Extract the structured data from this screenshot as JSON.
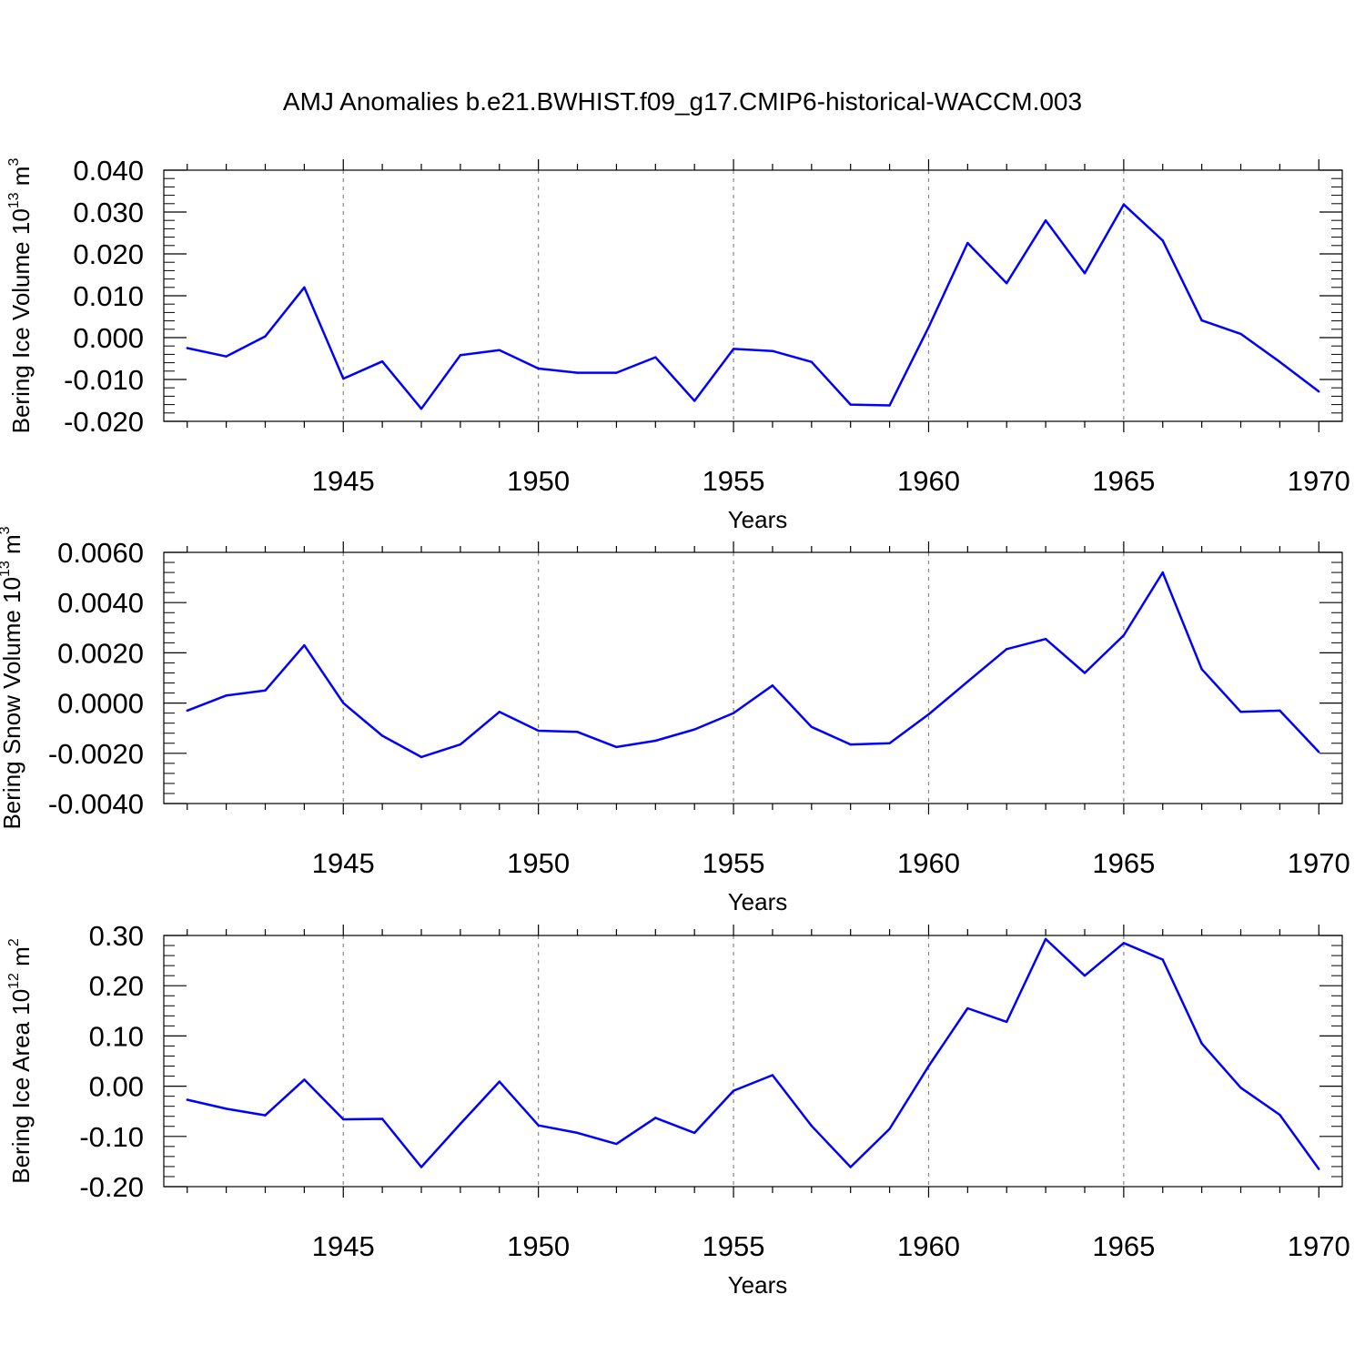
{
  "title": "AMJ Anomalies b.e21.BWHIST.f09_g17.CMIP6-historical-WACCM.003",
  "colors": {
    "line": "#0000ff",
    "axis": "#000000",
    "grid": "#888888"
  },
  "chart_data": [
    {
      "type": "line",
      "title": "AMJ Anomalies b.e21.BWHIST.f09_g17.CMIP6-historical-WACCM.003",
      "xlabel": "Years",
      "ylabel": "Bering Ice Volume 10",
      "ylabel_exp": "13",
      "ylabel_unit": " m",
      "ylabel_unit_exp": "3",
      "xlim": [
        1941,
        1970
      ],
      "ylim": [
        -0.02,
        0.04
      ],
      "yticks": [
        -0.02,
        -0.01,
        0.0,
        0.01,
        0.02,
        0.03,
        0.04
      ],
      "ytick_labels": [
        "-0.020",
        "-0.010",
        "0.000",
        "0.010",
        "0.020",
        "0.030",
        "0.040"
      ],
      "xticks": [
        1945,
        1950,
        1955,
        1960,
        1965,
        1970
      ],
      "xtick_labels": [
        "1945",
        "1950",
        "1955",
        "1960",
        "1965",
        "1970"
      ],
      "grid": "vertical dashed at major x ticks",
      "x": [
        1941,
        1942,
        1943,
        1944,
        1945,
        1946,
        1947,
        1948,
        1949,
        1950,
        1951,
        1952,
        1953,
        1954,
        1955,
        1956,
        1957,
        1958,
        1959,
        1960,
        1961,
        1962,
        1963,
        1964,
        1965,
        1966,
        1967,
        1968,
        1969,
        1970
      ],
      "series": [
        {
          "name": "Bering Ice Volume",
          "values": [
            -0.0025,
            -0.0045,
            0.0003,
            0.012,
            -0.0098,
            -0.0057,
            -0.017,
            -0.0042,
            -0.003,
            -0.0074,
            -0.0084,
            -0.0084,
            -0.0047,
            -0.0151,
            -0.0027,
            -0.0032,
            -0.0058,
            -0.016,
            -0.0162,
            0.0025,
            0.0226,
            0.013,
            0.028,
            0.0154,
            0.0318,
            0.0232,
            0.0041,
            0.0009,
            -0.0058,
            -0.0129
          ]
        }
      ]
    },
    {
      "type": "line",
      "xlabel": "Years",
      "ylabel": "Bering Snow Volume 10",
      "ylabel_exp": "13",
      "ylabel_unit": " m",
      "ylabel_unit_exp": "3",
      "xlim": [
        1941,
        1970
      ],
      "ylim": [
        -0.004,
        0.006
      ],
      "yticks": [
        -0.004,
        -0.002,
        0.0,
        0.002,
        0.004,
        0.006
      ],
      "ytick_labels": [
        "-0.0040",
        "-0.0020",
        "0.0000",
        "0.0020",
        "0.0040",
        "0.0060"
      ],
      "xticks": [
        1945,
        1950,
        1955,
        1960,
        1965,
        1970
      ],
      "xtick_labels": [
        "1945",
        "1950",
        "1955",
        "1960",
        "1965",
        "1970"
      ],
      "grid": "vertical dashed at major x ticks",
      "x": [
        1941,
        1942,
        1943,
        1944,
        1945,
        1946,
        1947,
        1948,
        1949,
        1950,
        1951,
        1952,
        1953,
        1954,
        1955,
        1956,
        1957,
        1958,
        1959,
        1960,
        1961,
        1962,
        1963,
        1964,
        1965,
        1966,
        1967,
        1968,
        1969,
        1970
      ],
      "series": [
        {
          "name": "Bering Snow Volume",
          "values": [
            -0.0003,
            0.0003,
            0.0005,
            0.0023,
            0.0,
            -0.0013,
            -0.00215,
            -0.00165,
            -0.00035,
            -0.0011,
            -0.00115,
            -0.00175,
            -0.0015,
            -0.00105,
            -0.0004,
            0.0007,
            -0.00095,
            -0.00165,
            -0.0016,
            -0.00045,
            0.00085,
            0.00215,
            0.00255,
            0.0012,
            0.0027,
            0.0052,
            0.00135,
            -0.00035,
            -0.0003,
            -0.00195
          ]
        }
      ]
    },
    {
      "type": "line",
      "xlabel": "Years",
      "ylabel": "Bering Ice Area 10",
      "ylabel_exp": "12",
      "ylabel_unit": " m",
      "ylabel_unit_exp": "2",
      "xlim": [
        1941,
        1970
      ],
      "ylim": [
        -0.2,
        0.3
      ],
      "yticks": [
        -0.2,
        -0.1,
        0.0,
        0.1,
        0.2,
        0.3
      ],
      "ytick_labels": [
        "-0.20",
        "-0.10",
        "0.00",
        "0.10",
        "0.20",
        "0.30"
      ],
      "xticks": [
        1945,
        1950,
        1955,
        1960,
        1965,
        1970
      ],
      "xtick_labels": [
        "1945",
        "1950",
        "1955",
        "1960",
        "1965",
        "1970"
      ],
      "grid": "vertical dashed at major x ticks",
      "x": [
        1941,
        1942,
        1943,
        1944,
        1945,
        1946,
        1947,
        1948,
        1949,
        1950,
        1951,
        1952,
        1953,
        1954,
        1955,
        1956,
        1957,
        1958,
        1959,
        1960,
        1961,
        1962,
        1963,
        1964,
        1965,
        1966,
        1967,
        1968,
        1969,
        1970
      ],
      "series": [
        {
          "name": "Bering Ice Area",
          "values": [
            -0.027,
            -0.045,
            -0.058,
            0.013,
            -0.066,
            -0.065,
            -0.161,
            -0.075,
            0.009,
            -0.078,
            -0.093,
            -0.115,
            -0.063,
            -0.093,
            -0.009,
            0.022,
            -0.079,
            -0.161,
            -0.085,
            0.04,
            0.155,
            0.128,
            0.293,
            0.22,
            0.285,
            0.252,
            0.085,
            -0.003,
            -0.057,
            -0.165
          ]
        }
      ]
    }
  ]
}
